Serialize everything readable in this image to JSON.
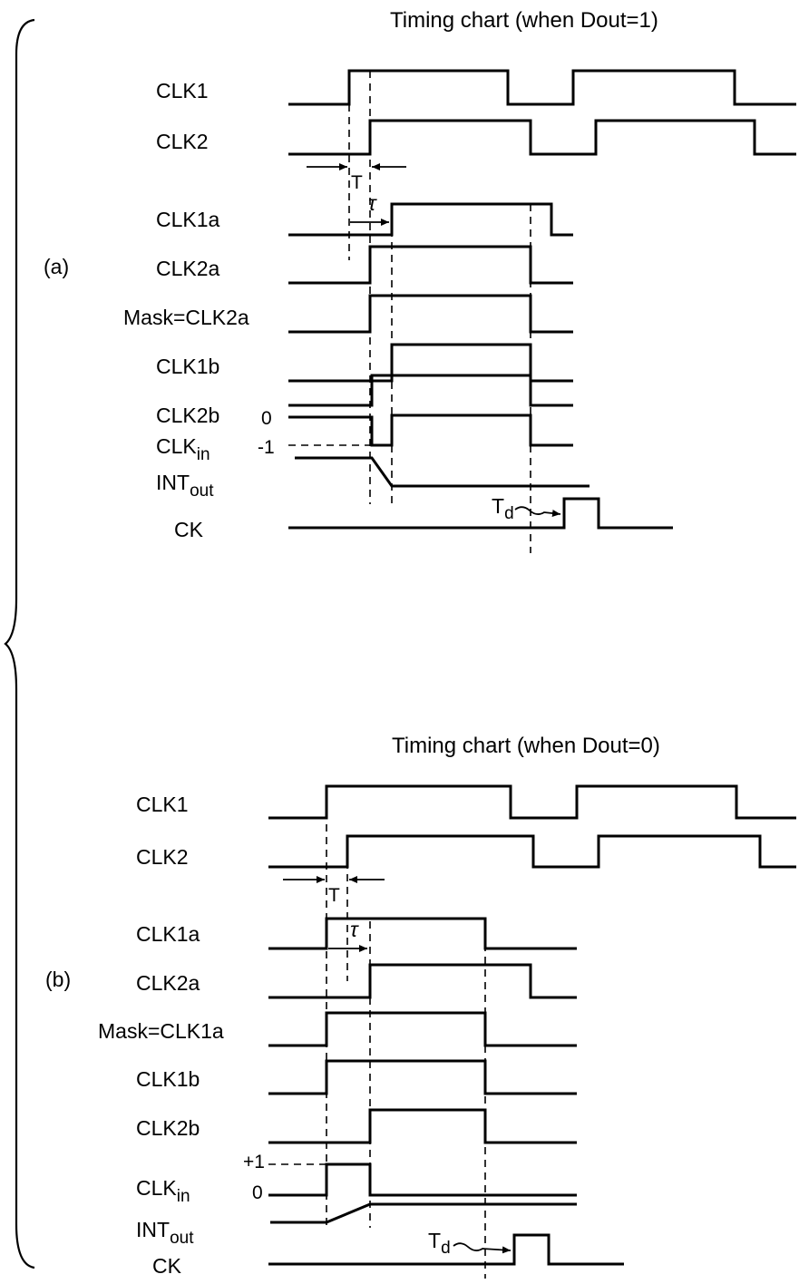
{
  "panels": [
    {
      "label": "(a)",
      "title": "Timing chart (when Dout=1)",
      "signals": {
        "clk1": "CLK1",
        "clk2": "CLK2",
        "clk1a": "CLK1a",
        "clk2a": "CLK2a",
        "mask": "Mask=CLK2a",
        "clk1b": "CLK1b",
        "clk2b": "CLK2b",
        "clkin_main": "CLK",
        "clkin_sub": "in",
        "intout_main": "INT",
        "intout_sub": "out",
        "ck": "CK"
      },
      "levels": {
        "upper": "0",
        "lower": "-1"
      },
      "annotations": {
        "T": "T",
        "tau": "τ",
        "td_main": "T",
        "td_sub": "d"
      }
    },
    {
      "label": "(b)",
      "title": "Timing chart (when Dout=0)",
      "signals": {
        "clk1": "CLK1",
        "clk2": "CLK2",
        "clk1a": "CLK1a",
        "clk2a": "CLK2a",
        "mask": "Mask=CLK1a",
        "clk1b": "CLK1b",
        "clk2b": "CLK2b",
        "clkin_main": "CLK",
        "clkin_sub": "in",
        "intout_main": "INT",
        "intout_sub": "out",
        "ck": "CK"
      },
      "levels": {
        "upper": "+1",
        "lower": "0"
      },
      "annotations": {
        "T": "T",
        "tau": "τ",
        "td_main": "T",
        "td_sub": "d"
      }
    }
  ]
}
